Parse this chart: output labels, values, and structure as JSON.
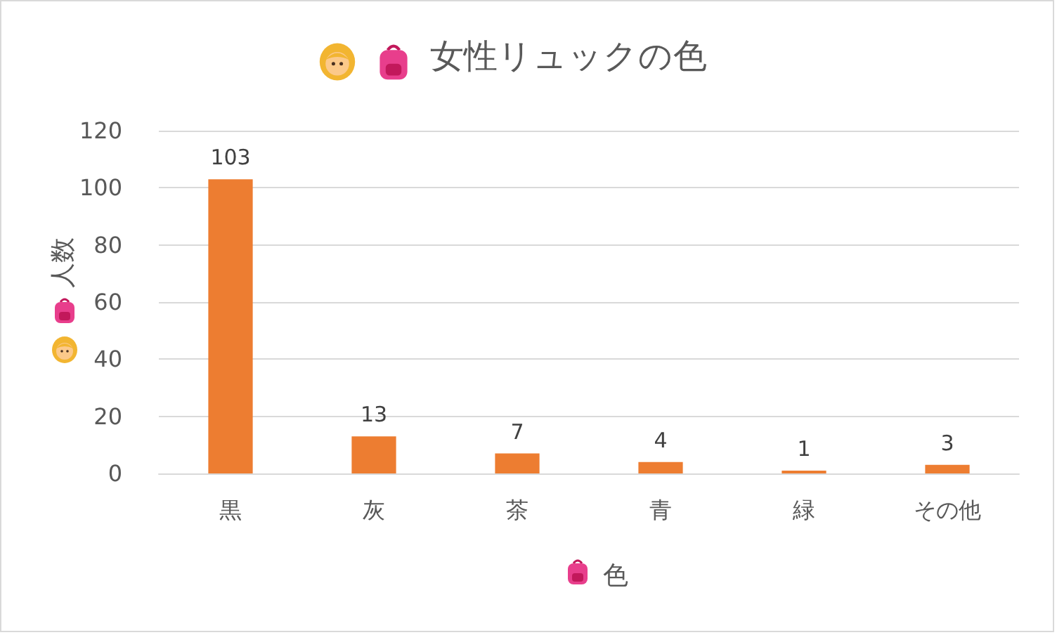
{
  "chart_data": {
    "type": "bar",
    "title": "女性リュックの色",
    "xlabel": "色",
    "ylabel": "人数",
    "categories": [
      "黒",
      "灰",
      "茶",
      "青",
      "緑",
      "その他"
    ],
    "values": [
      103,
      13,
      7,
      4,
      1,
      3
    ],
    "color": "#ed7d31",
    "ylim": [
      0,
      120
    ],
    "yticks": [
      0,
      20,
      40,
      60,
      80,
      100,
      120
    ],
    "grid": "y",
    "data_labels": true
  }
}
